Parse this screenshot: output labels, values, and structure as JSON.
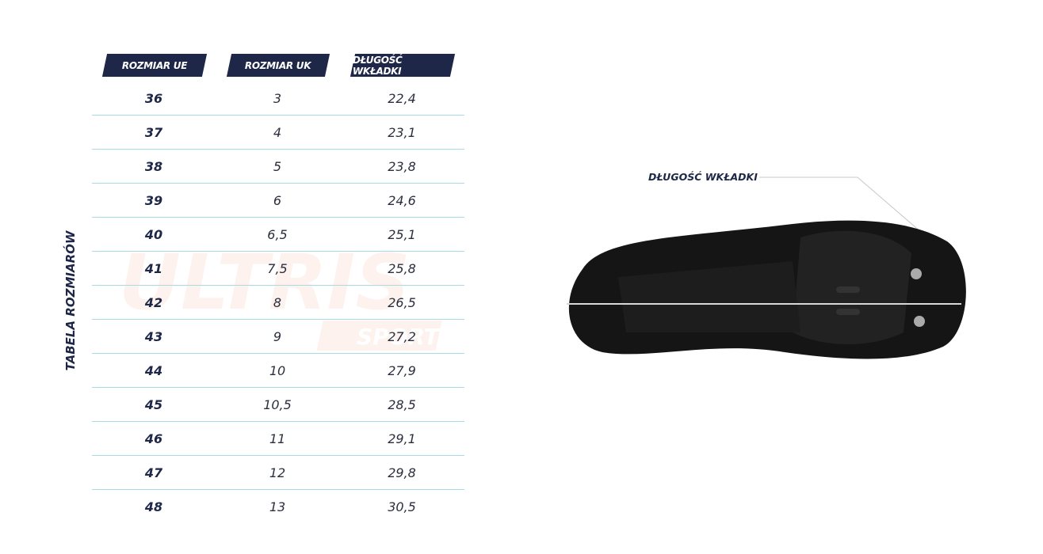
{
  "table": {
    "vertical_title": "TABELA ROZMIARÓW",
    "headers": [
      "ROZMIAR UE",
      "ROZMIAR UK",
      "DŁUGOŚĆ WKŁADKI"
    ],
    "rows": [
      [
        "36",
        "3",
        "22,4"
      ],
      [
        "37",
        "4",
        "23,1"
      ],
      [
        "38",
        "5",
        "23,8"
      ],
      [
        "39",
        "6",
        "24,6"
      ],
      [
        "40",
        "6,5",
        "25,1"
      ],
      [
        "41",
        "7,5",
        "25,8"
      ],
      [
        "42",
        "8",
        "26,5"
      ],
      [
        "43",
        "9",
        "27,2"
      ],
      [
        "44",
        "10",
        "27,9"
      ],
      [
        "45",
        "10,5",
        "28,5"
      ],
      [
        "46",
        "11",
        "29,1"
      ],
      [
        "47",
        "12",
        "29,8"
      ],
      [
        "48",
        "13",
        "30,5"
      ]
    ]
  },
  "watermark": {
    "text": "ULTRIS",
    "subtext": "SPORT"
  },
  "shoe": {
    "measure_label": "DŁUGOŚĆ WKŁADKI"
  },
  "colors": {
    "navy": "#1e2747",
    "row_line": "#a9dbe6"
  }
}
